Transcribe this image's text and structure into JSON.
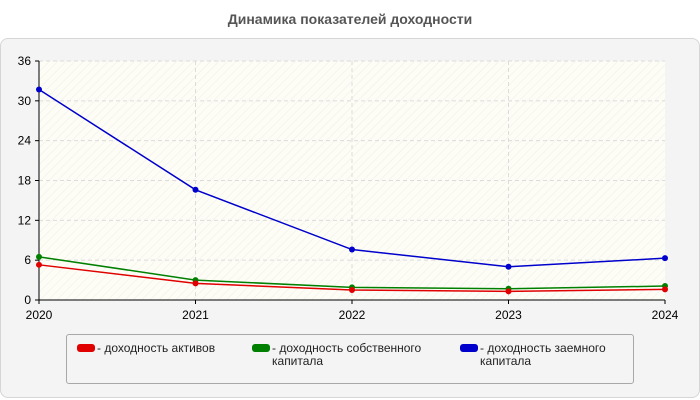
{
  "chart_data": {
    "type": "line",
    "title": "Динамика показателей доходности",
    "xlabel": "",
    "ylabel": "",
    "categories": [
      "2020",
      "2021",
      "2022",
      "2023",
      "2024"
    ],
    "ylim": [
      0,
      36
    ],
    "yticks": [
      "0",
      "6",
      "12",
      "18",
      "24",
      "30",
      "36"
    ],
    "grid": true,
    "legend_position": "bottom",
    "series": [
      {
        "name": "- доходность активов",
        "color": "#e00000",
        "values": [
          5.3,
          2.5,
          1.5,
          1.3,
          1.6
        ]
      },
      {
        "name": "- доходность собственного капитала",
        "color": "#008000",
        "values": [
          6.5,
          3.0,
          1.9,
          1.7,
          2.1
        ]
      },
      {
        "name": "- доходность заемного капитала",
        "color": "#0000cc",
        "values": [
          31.7,
          16.6,
          7.6,
          5.0,
          6.3
        ]
      }
    ]
  }
}
